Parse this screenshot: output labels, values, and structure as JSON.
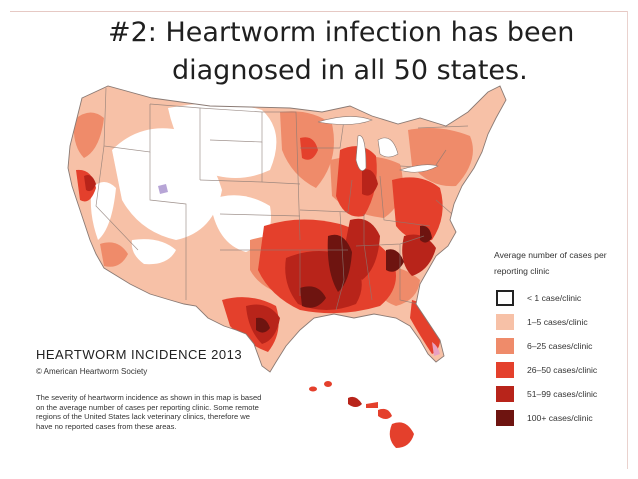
{
  "slide": {
    "title_line1": "#2: Heartworm infection has been",
    "title_line2": "diagnosed in all 50 states."
  },
  "map": {
    "title": "HEARTWORM INCIDENCE 2013",
    "copyright": "© American Heartworm Society",
    "note": "The severity of heartworm incidence as shown in this map is based on the average number of cases per reporting clinic.  Some remote regions of the United States lack veterinary clinics, therefore we have no reported cases from these areas.",
    "colors": {
      "lt1": "#ffffff",
      "c1_5": "#f7c1a7",
      "c6_25": "#ef8b6a",
      "c26_50": "#e4402c",
      "c51_99": "#b8241a",
      "c100": "#6e1410",
      "border": "#8a7a74"
    }
  },
  "legend": {
    "title": "Average number of cases per reporting clinic",
    "items": [
      {
        "label": "< 1 case/clinic",
        "color": "#ffffff"
      },
      {
        "label": "1–5 cases/clinic",
        "color": "#f7c1a7"
      },
      {
        "label": "6–25  cases/clinic",
        "color": "#ef8b6a"
      },
      {
        "label": "26–50  cases/clinic",
        "color": "#e4402c"
      },
      {
        "label": "51–99  cases/clinic",
        "color": "#b8241a"
      },
      {
        "label": "100+ cases/clinic",
        "color": "#6e1410"
      }
    ]
  }
}
